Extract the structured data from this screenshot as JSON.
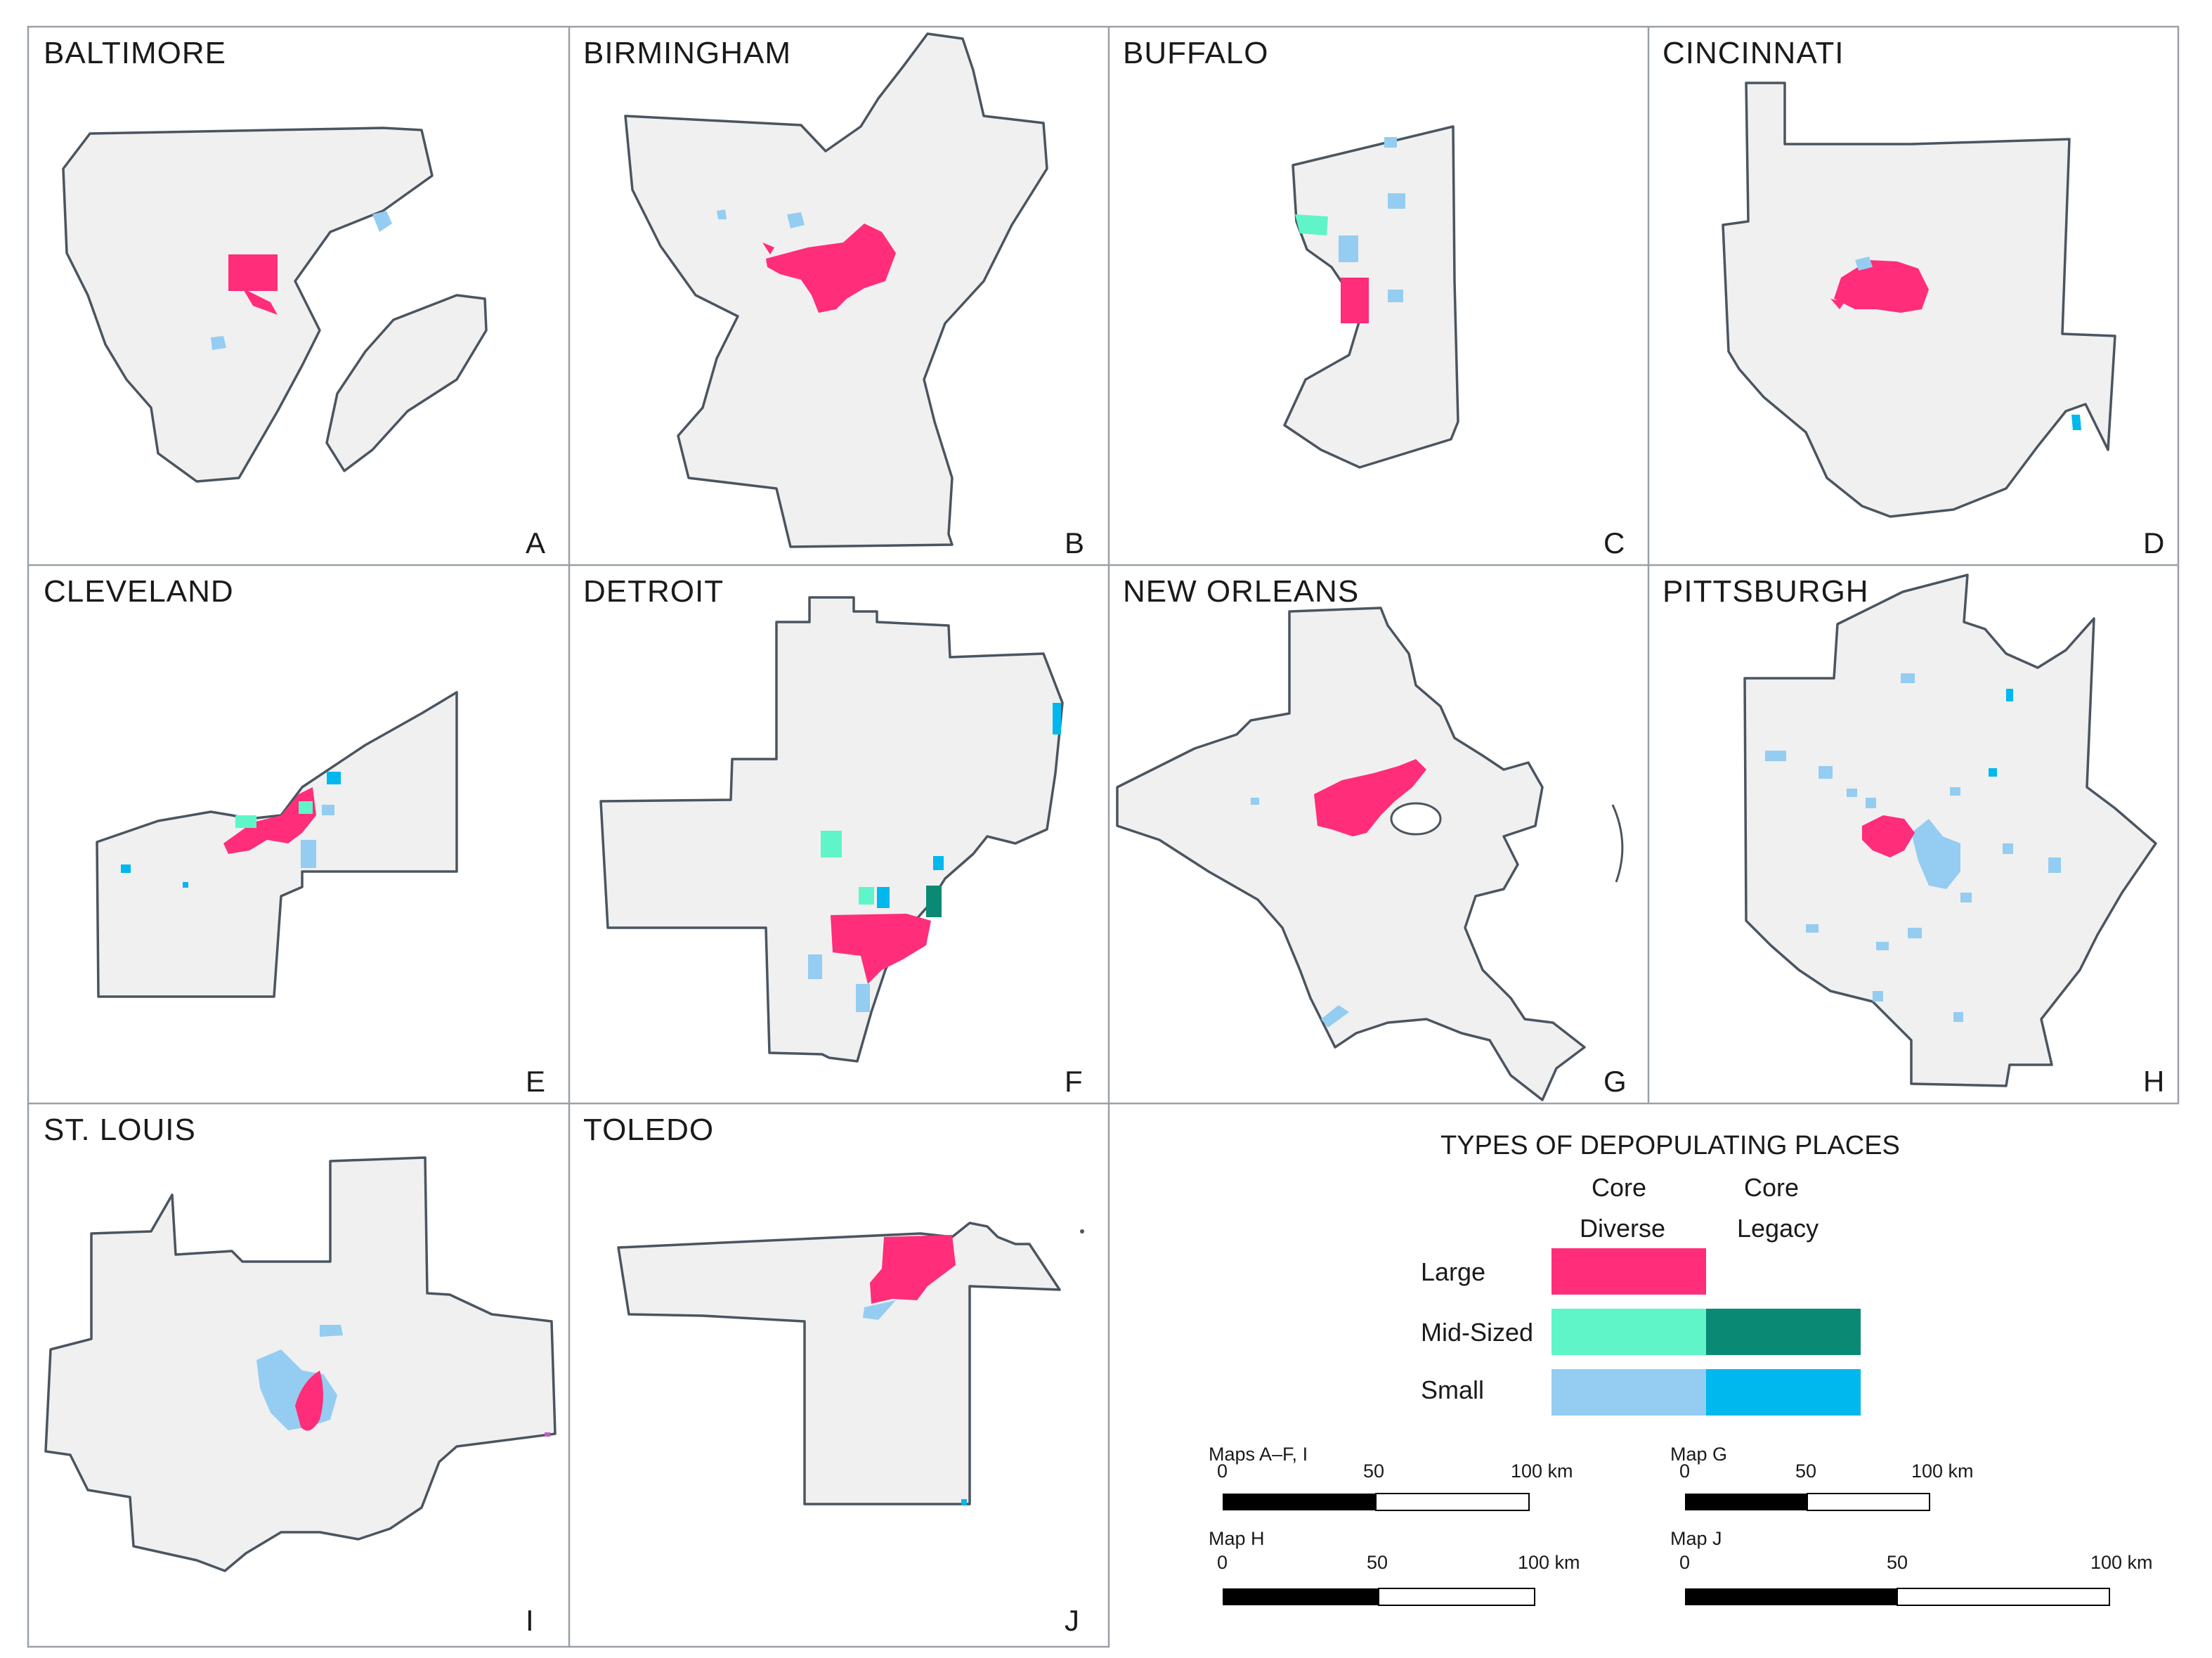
{
  "maps": [
    {
      "city": "BALTIMORE",
      "letter": "A"
    },
    {
      "city": "BIRMINGHAM",
      "letter": "B"
    },
    {
      "city": "BUFFALO",
      "letter": "C"
    },
    {
      "city": "CINCINNATI",
      "letter": "D"
    },
    {
      "city": "CLEVELAND",
      "letter": "E"
    },
    {
      "city": "DETROIT",
      "letter": "F"
    },
    {
      "city": "NEW ORLEANS",
      "letter": "G"
    },
    {
      "city": "PITTSBURGH",
      "letter": "H"
    },
    {
      "city": "ST. LOUIS",
      "letter": "I"
    },
    {
      "city": "TOLEDO",
      "letter": "J"
    }
  ],
  "legend": {
    "title": "TYPES OF DEPOPULATING PLACES",
    "col1_line1": "Core",
    "col1_line2": "Diverse",
    "col2_line1": "Core",
    "col2_line2": "Legacy",
    "rows": [
      "Large",
      "Mid-Sized",
      "Small"
    ]
  },
  "colors": {
    "large_core_diverse": "#ff2d7a",
    "midsized_core_diverse": "#5ff5c9",
    "midsized_core_legacy": "#0a8a74",
    "small_core_diverse": "#94cdf1",
    "small_core_legacy": "#00b7ee",
    "county_fill": "#f0f0f0",
    "county_stroke": "#4a5560"
  },
  "scalebars": [
    {
      "label": "Maps A–F, I",
      "ticks": [
        "0",
        "50",
        "100 km"
      ]
    },
    {
      "label": "Map G",
      "ticks": [
        "0",
        "50",
        "100 km"
      ]
    },
    {
      "label": "Map H",
      "ticks": [
        "0",
        "50",
        "100 km"
      ]
    },
    {
      "label": "Map J",
      "ticks": [
        "0",
        "50",
        "100 km"
      ]
    }
  ]
}
